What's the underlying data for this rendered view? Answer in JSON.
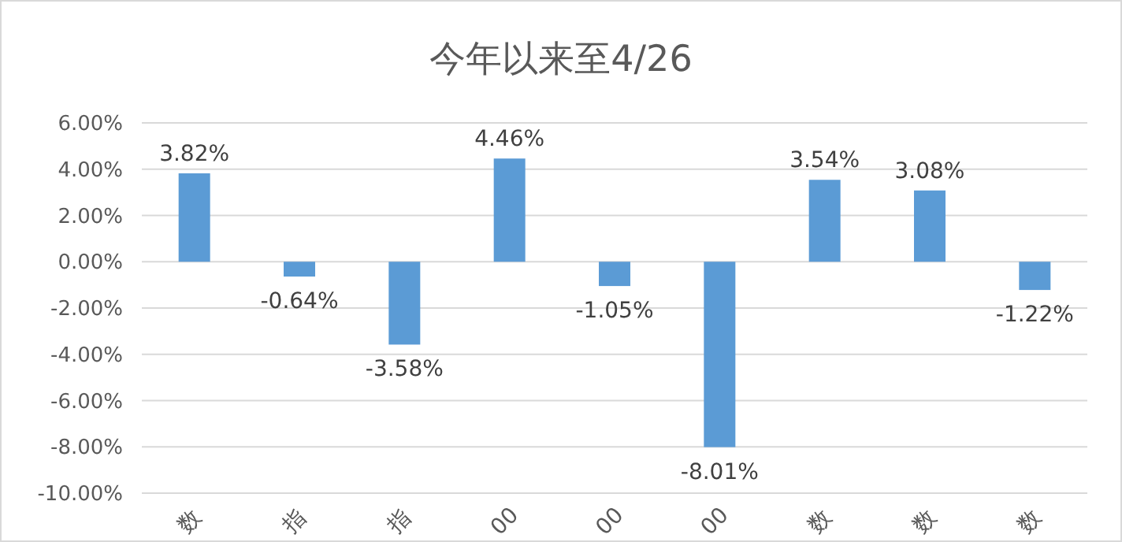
{
  "chart_data": {
    "type": "bar",
    "title": "今年以来至4/26",
    "categories": [
      "数",
      "指",
      "指",
      "00",
      "00",
      "00",
      "数",
      "数",
      "数"
    ],
    "values": [
      3.82,
      -0.64,
      -3.58,
      4.46,
      -1.05,
      -8.01,
      3.54,
      3.08,
      -1.22
    ],
    "value_labels": [
      "3.82%",
      "-0.64%",
      "-3.58%",
      "4.46%",
      "-1.05%",
      "-8.01%",
      "3.54%",
      "3.08%",
      "-1.22%"
    ],
    "color": "#5b9bd5",
    "ylim": [
      -10,
      6
    ],
    "yticks": [
      {
        "value": -10,
        "label": "-10.00%"
      },
      {
        "value": -8,
        "label": "-8.00%"
      },
      {
        "value": -6,
        "label": "-6.00%"
      },
      {
        "value": -4,
        "label": "-4.00%"
      },
      {
        "value": -2,
        "label": "-2.00%"
      },
      {
        "value": 0,
        "label": "0.00%"
      },
      {
        "value": 2,
        "label": "2.00%"
      },
      {
        "value": 4,
        "label": "4.00%"
      },
      {
        "value": 6,
        "label": "6.00%"
      }
    ],
    "grid": true
  }
}
